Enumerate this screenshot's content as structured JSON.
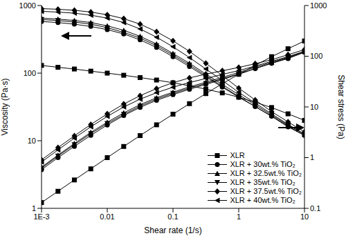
{
  "chart_data": {
    "type": "line",
    "log": true,
    "grid": false,
    "legend": "lower right",
    "xlabel": "Shear rate (1/s)",
    "ylabel": "Viscosity (Pa·s)",
    "y2label": "Shear stress (Pa)",
    "x": [
      0.001,
      0.00178,
      0.00316,
      0.00562,
      0.01,
      0.0178,
      0.0316,
      0.0562,
      0.1,
      0.178,
      0.316,
      0.562,
      1,
      1.78,
      3.16,
      5.62,
      10
    ],
    "xlim": [
      0.001,
      10
    ],
    "xticks": [
      {
        "value": 0.001,
        "label": "1E-3"
      },
      0.01,
      0.1,
      1,
      10
    ],
    "ylim": [
      1,
      1000
    ],
    "yticks": [
      1,
      10,
      100,
      1000
    ],
    "y2lim": [
      0.1,
      1000
    ],
    "y2ticks": [
      0.1,
      1,
      10,
      100,
      1000
    ],
    "series": [
      {
        "name": "XLR",
        "color": "#000000",
        "marker": "square",
        "values": [
          130,
          122,
          115,
          107,
          100,
          93,
          86,
          79,
          72,
          65,
          58,
          51,
          44,
          37,
          31,
          25,
          20
        ],
        "shear_stress": [
          0.13,
          0.217,
          0.363,
          0.601,
          1.0,
          1.66,
          2.72,
          4.44,
          7.2,
          11.6,
          18.3,
          28.7,
          44,
          65.9,
          98,
          140.5,
          200
        ]
      },
      {
        "name": "XLR + 30wt.% TiO₂",
        "color": "#000000",
        "marker": "circle",
        "values": [
          580,
          560,
          530,
          490,
          440,
          380,
          310,
          240,
          175,
          125,
          88,
          62,
          44,
          32,
          23,
          16,
          12
        ],
        "shear_stress": [
          0.58,
          0.997,
          1.67,
          2.75,
          4.4,
          6.76,
          9.8,
          13.5,
          17.5,
          22.3,
          27.8,
          34.8,
          44,
          57,
          72.7,
          89.9,
          120
        ]
      },
      {
        "name": "XLR + 32.5wt.% TiO₂",
        "color": "#000000",
        "marker": "triangle-up",
        "values": [
          650,
          630,
          600,
          560,
          500,
          430,
          350,
          270,
          195,
          140,
          97,
          68,
          48,
          34,
          24,
          17,
          12.5
        ],
        "shear_stress": [
          0.65,
          1.12,
          1.9,
          3.15,
          5.0,
          7.65,
          11.1,
          15.2,
          19.5,
          24.9,
          30.7,
          38.2,
          48,
          60.5,
          75.8,
          95.5,
          125
        ]
      },
      {
        "name": "XLR + 35wt.% TiO₂",
        "color": "#000000",
        "marker": "triangle-down",
        "values": [
          620,
          600,
          570,
          530,
          470,
          400,
          330,
          255,
          185,
          132,
          92,
          64,
          45,
          32,
          23,
          16.5,
          12
        ],
        "shear_stress": [
          0.62,
          1.07,
          1.8,
          2.98,
          4.7,
          7.12,
          10.4,
          14.3,
          18.5,
          23.5,
          29.1,
          36.0,
          45,
          57.0,
          72.7,
          92.7,
          120
        ]
      },
      {
        "name": "XLR + 37.5wt.% TiO₂",
        "color": "#000000",
        "marker": "diamond",
        "values": [
          900,
          880,
          850,
          800,
          730,
          640,
          530,
          410,
          300,
          210,
          140,
          92,
          60,
          40,
          27,
          19,
          13.5
        ],
        "shear_stress": [
          0.9,
          1.57,
          2.69,
          4.5,
          7.3,
          11.4,
          16.7,
          23.0,
          30,
          37.4,
          44.2,
          51.7,
          60,
          71.2,
          85.3,
          107,
          135
        ]
      },
      {
        "name": "XLR + 40wt.% TiO₂",
        "color": "#000000",
        "marker": "triangle-left",
        "values": [
          820,
          800,
          770,
          720,
          650,
          560,
          450,
          340,
          245,
          170,
          115,
          78,
          52,
          36,
          25,
          17.5,
          12.5
        ],
        "shear_stress": [
          0.82,
          1.42,
          2.43,
          4.05,
          6.5,
          9.97,
          14.2,
          19.1,
          24.5,
          30.3,
          36.3,
          43.8,
          52,
          64.1,
          79,
          98.4,
          125
        ]
      }
    ]
  }
}
